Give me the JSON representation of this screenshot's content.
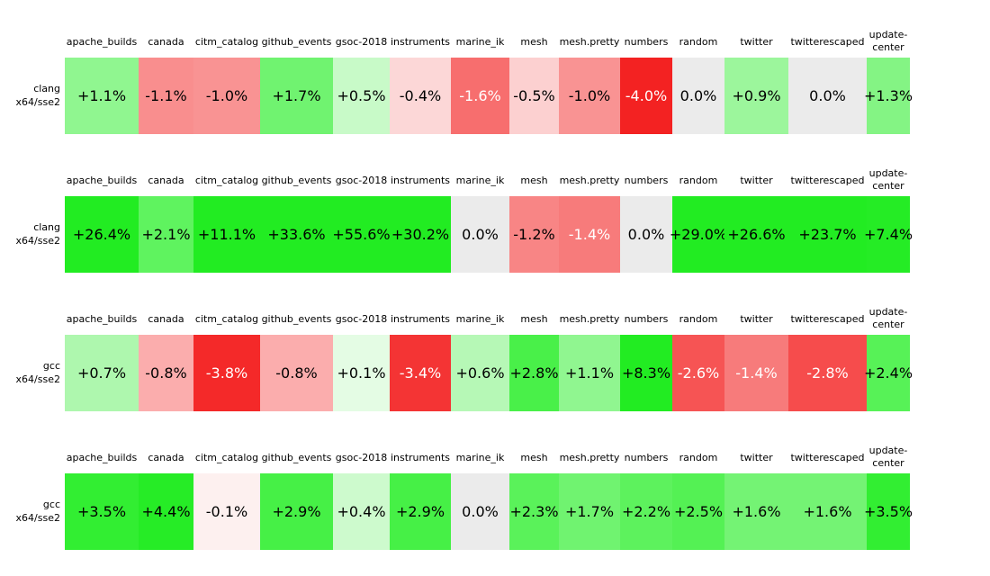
{
  "chart_data": {
    "type": "heatmap",
    "unit": "%",
    "value_meaning": "percent difference, green positive / red negative / gray zero",
    "color_encoding": {
      "positive_full": "#22ec22",
      "negative_full": "#f32222",
      "zero": "#ebebeb",
      "background": "#ffffff"
    },
    "columns": [
      "apache_builds",
      "canada",
      "citm_catalog",
      "github_events",
      "gsoc-2018",
      "instruments",
      "marine_ik",
      "mesh",
      "mesh.pretty",
      "numbers",
      "random",
      "twitter",
      "twitterescaped",
      "update-center"
    ],
    "row_groups": [
      {
        "label": {
          "line1": "clang",
          "line2": "x64/sse2"
        },
        "values": [
          1.1,
          -1.1,
          -1.0,
          1.7,
          0.5,
          -0.4,
          -1.6,
          -0.5,
          -1.0,
          -4.0,
          0.0,
          0.9,
          0.0,
          1.3
        ],
        "display": [
          "+1.1%",
          "-1.1%",
          "-1.0%",
          "+1.7%",
          "+0.5%",
          "-0.4%",
          "-1.6%",
          "-0.5%",
          "-1.0%",
          "-4.0%",
          "0.0%",
          "+0.9%",
          "0.0%",
          "+1.3%"
        ],
        "bg": [
          "#90f690",
          "#f98e8e",
          "#f99393",
          "#70f370",
          "#c8fac8",
          "#fcd7d7",
          "#f76e6e",
          "#fcd0d0",
          "#f99393",
          "#f32222",
          "#ebebeb",
          "#9cf69c",
          "#ebebeb",
          "#84f484"
        ],
        "fg": [
          "#000000",
          "#000000",
          "#000000",
          "#000000",
          "#000000",
          "#000000",
          "#ffffff",
          "#000000",
          "#000000",
          "#ffffff",
          "#000000",
          "#000000",
          "#000000",
          "#000000"
        ]
      },
      {
        "label": {
          "line1": "clang",
          "line2": "x64/sse2"
        },
        "values": [
          26.4,
          2.1,
          11.1,
          33.6,
          55.6,
          30.2,
          0.0,
          -1.2,
          -1.4,
          0.0,
          29.0,
          26.6,
          23.7,
          7.4
        ],
        "display": [
          "+26.4%",
          "+2.1%",
          "+11.1%",
          "+33.6%",
          "+55.6%",
          "+30.2%",
          "0.0%",
          "-1.2%",
          "-1.4%",
          "0.0%",
          "+29.0%",
          "+26.6%",
          "+23.7%",
          "+7.4%"
        ],
        "bg": [
          "#22ec22",
          "#5ff35f",
          "#22ec22",
          "#22ec22",
          "#22ec22",
          "#22ec22",
          "#ebebeb",
          "#f88585",
          "#f77b7b",
          "#ebebeb",
          "#22ec22",
          "#22ec22",
          "#22ec22",
          "#25ec25"
        ],
        "fg": [
          "#000000",
          "#000000",
          "#000000",
          "#000000",
          "#000000",
          "#000000",
          "#000000",
          "#000000",
          "#ffffff",
          "#000000",
          "#000000",
          "#000000",
          "#000000",
          "#000000"
        ]
      },
      {
        "label": {
          "line1": "gcc",
          "line2": "x64/sse2"
        },
        "values": [
          0.7,
          -0.8,
          -3.8,
          -0.8,
          0.1,
          -3.4,
          0.6,
          2.8,
          1.1,
          8.3,
          -2.6,
          -1.4,
          -2.8,
          2.4
        ],
        "display": [
          "+0.7%",
          "-0.8%",
          "-3.8%",
          "-0.8%",
          "+0.1%",
          "-3.4%",
          "+0.6%",
          "+2.8%",
          "+1.1%",
          "+8.3%",
          "-2.6%",
          "-1.4%",
          "-2.8%",
          "+2.4%"
        ],
        "bg": [
          "#aef7ae",
          "#fbadad",
          "#f42929",
          "#fbadad",
          "#e4fce4",
          "#f43434",
          "#b6f8b6",
          "#49f049",
          "#90f690",
          "#22ec22",
          "#f65454",
          "#f77b7b",
          "#f64c4c",
          "#57f257"
        ],
        "fg": [
          "#000000",
          "#000000",
          "#ffffff",
          "#000000",
          "#000000",
          "#ffffff",
          "#000000",
          "#000000",
          "#000000",
          "#000000",
          "#ffffff",
          "#ffffff",
          "#ffffff",
          "#000000"
        ]
      },
      {
        "label": {
          "line1": "gcc",
          "line2": "x64/sse2"
        },
        "values": [
          3.5,
          4.4,
          -0.1,
          2.9,
          0.4,
          2.9,
          0.0,
          2.3,
          1.7,
          2.2,
          2.5,
          1.6,
          1.6,
          3.5
        ],
        "display": [
          "+3.5%",
          "+4.4%",
          "-0.1%",
          "+2.9%",
          "+0.4%",
          "+2.9%",
          "0.0%",
          "+2.3%",
          "+1.7%",
          "+2.2%",
          "+2.5%",
          "+1.6%",
          "+1.6%",
          "+3.5%"
        ],
        "bg": [
          "#32ee32",
          "#26ec26",
          "#fdf0ef",
          "#46f046",
          "#cdfacd",
          "#46f046",
          "#ebebeb",
          "#5af25a",
          "#70f370",
          "#5df25d",
          "#54f154",
          "#74f374",
          "#74f374",
          "#32ee32"
        ],
        "fg": [
          "#000000",
          "#000000",
          "#000000",
          "#000000",
          "#000000",
          "#000000",
          "#000000",
          "#000000",
          "#000000",
          "#000000",
          "#000000",
          "#000000",
          "#000000",
          "#000000"
        ]
      }
    ]
  }
}
